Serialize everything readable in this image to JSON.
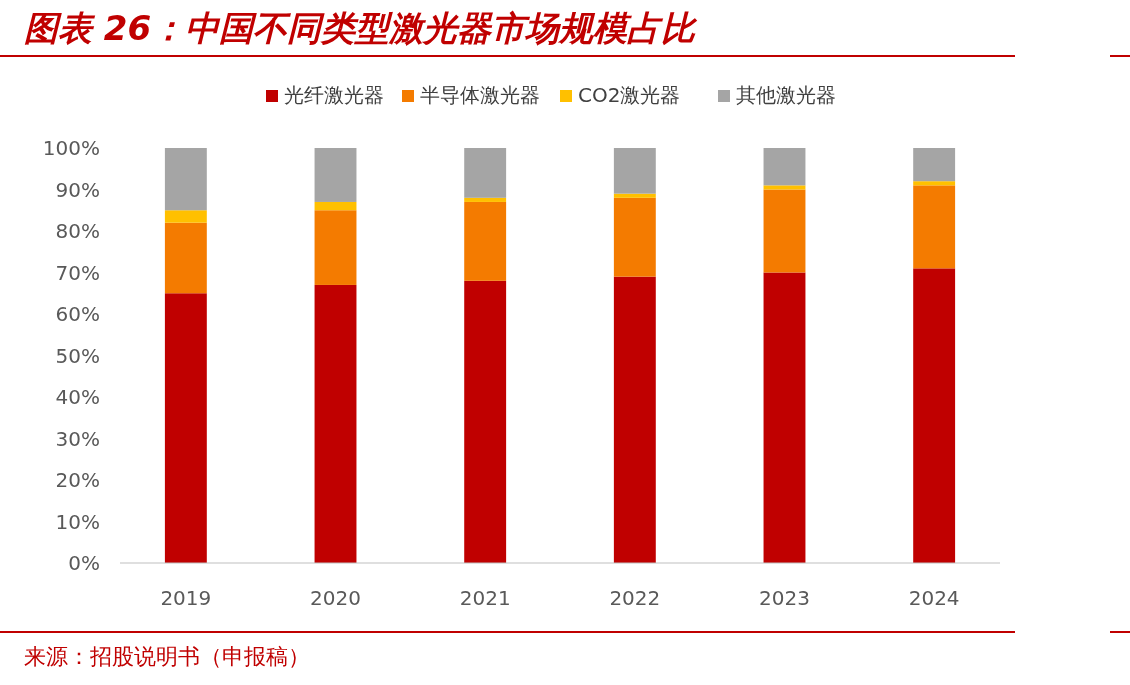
{
  "chart_data": {
    "type": "bar",
    "title": "图表 26：中国不同类型激光器市场规模占比",
    "stacked": true,
    "legend": "top",
    "categories": [
      "2019",
      "2020",
      "2021",
      "2022",
      "2023",
      "2024"
    ],
    "series": [
      {
        "name": "光纤激光器",
        "color": "#c00000",
        "values": [
          65,
          67,
          68,
          69,
          70,
          71
        ]
      },
      {
        "name": "半导体激光器",
        "color": "#f47b00",
        "values": [
          17,
          18,
          19,
          19,
          20,
          20
        ]
      },
      {
        "name": "CO2激光器",
        "color": "#ffc000",
        "values": [
          3,
          2,
          1,
          1,
          1,
          1
        ]
      },
      {
        "name": "其他激光器",
        "color": "#a5a5a5",
        "values": [
          15,
          13,
          12,
          11,
          9,
          8
        ]
      }
    ],
    "ylim": [
      0,
      100
    ],
    "yticks": [
      {
        "value": 0,
        "label": "0%"
      },
      {
        "value": 10,
        "label": "10%"
      },
      {
        "value": 20,
        "label": "20%"
      },
      {
        "value": 30,
        "label": "30%"
      },
      {
        "value": 40,
        "label": "40%"
      },
      {
        "value": 50,
        "label": "50%"
      },
      {
        "value": 60,
        "label": "60%"
      },
      {
        "value": 70,
        "label": "70%"
      },
      {
        "value": 80,
        "label": "80%"
      },
      {
        "value": 90,
        "label": "90%"
      },
      {
        "value": 100,
        "label": "100%"
      }
    ],
    "annotations": [
      "来源：招股说明书（申报稿）"
    ]
  }
}
